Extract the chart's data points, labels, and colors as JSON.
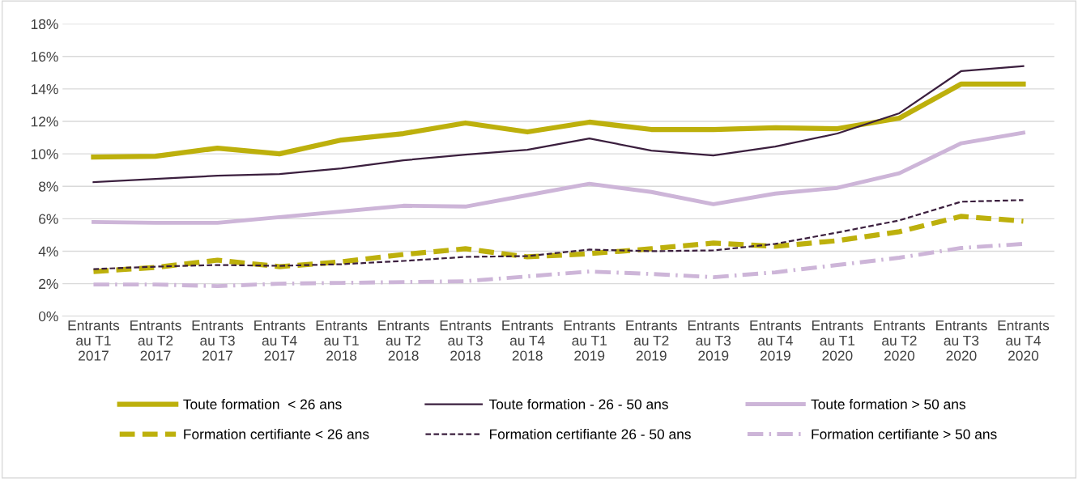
{
  "chart_data": {
    "type": "line",
    "categories": [
      "Entrants\nau T1\n2017",
      "Entrants\nau T2\n2017",
      "Entrants\nau T3\n2017",
      "Entrants\nau T4\n2017",
      "Entrants\nau T1\n2018",
      "Entrants\nau T2\n2018",
      "Entrants\nau T3\n2018",
      "Entrants\nau T4\n2018",
      "Entrants\nau T1\n2019",
      "Entrants\nau T2\n2019",
      "Entrants\nau T3\n2019",
      "Entrants\nau T4\n2019",
      "Entrants\nau T1\n2020",
      "Entrants\nau T2\n2020",
      "Entrants\nau T3\n2020",
      "Entrants\nau T4\n2020"
    ],
    "series": [
      {
        "name": "Toute formation  < 26 ans",
        "color": "#bdb00c",
        "line_style": "solid",
        "values": [
          9.8,
          9.85,
          10.35,
          10.0,
          10.85,
          11.25,
          11.9,
          11.35,
          11.95,
          11.5,
          11.5,
          11.6,
          11.55,
          12.2,
          14.3,
          14.3
        ]
      },
      {
        "name": "Toute formation - 26 - 50 ans",
        "color": "#3b1f3e",
        "line_style": "solid",
        "values": [
          8.25,
          8.45,
          8.65,
          8.75,
          9.1,
          9.6,
          9.95,
          10.25,
          10.95,
          10.2,
          9.9,
          10.45,
          11.25,
          12.5,
          15.1,
          15.4
        ]
      },
      {
        "name": "Toute formation > 50 ans",
        "color": "#cdb5d8",
        "line_style": "solid",
        "values": [
          5.8,
          5.75,
          5.75,
          6.1,
          6.45,
          6.8,
          6.75,
          7.45,
          8.15,
          7.65,
          6.9,
          7.55,
          7.9,
          8.8,
          10.65,
          11.3
        ]
      },
      {
        "name": "Formation certifiante < 26 ans",
        "color": "#bdb00c",
        "line_style": "dashed",
        "values": [
          2.75,
          3.0,
          3.45,
          3.05,
          3.35,
          3.8,
          4.15,
          3.65,
          3.85,
          4.15,
          4.5,
          4.3,
          4.65,
          5.2,
          6.15,
          5.85
        ]
      },
      {
        "name": "Formation certifiante 26 - 50 ans",
        "color": "#3b1f3e",
        "line_style": "dashed",
        "values": [
          2.9,
          3.05,
          3.15,
          3.1,
          3.2,
          3.4,
          3.65,
          3.7,
          4.1,
          4.0,
          4.05,
          4.45,
          5.15,
          5.9,
          7.05,
          7.15
        ]
      },
      {
        "name": "Formation certifiante > 50 ans",
        "color": "#cdb5d8",
        "line_style": "dashdot",
        "values": [
          1.95,
          1.95,
          1.85,
          2.0,
          2.05,
          2.1,
          2.15,
          2.45,
          2.75,
          2.6,
          2.4,
          2.7,
          3.15,
          3.6,
          4.2,
          4.45
        ]
      }
    ],
    "ylim": [
      0,
      18
    ],
    "yticks": [
      {
        "value": 0,
        "label": "0%"
      },
      {
        "value": 2,
        "label": "2%"
      },
      {
        "value": 4,
        "label": "4%"
      },
      {
        "value": 6,
        "label": "6%"
      },
      {
        "value": 8,
        "label": "8%"
      },
      {
        "value": 10,
        "label": "10%"
      },
      {
        "value": 12,
        "label": "12%"
      },
      {
        "value": 14,
        "label": "14%"
      },
      {
        "value": 16,
        "label": "16%"
      },
      {
        "value": 18,
        "label": "18%"
      }
    ],
    "grid": "y",
    "legend": "bottom",
    "marker": "none"
  }
}
